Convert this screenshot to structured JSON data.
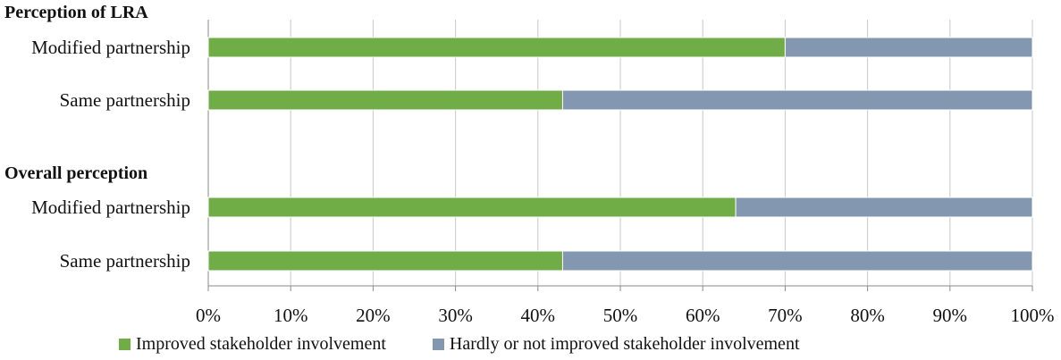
{
  "chart_data": {
    "type": "bar",
    "orientation": "horizontal-stacked-100",
    "groups": [
      {
        "heading": "Perception of LRA",
        "categories": [
          "Modified partnership",
          "Same partnership"
        ]
      },
      {
        "heading": "Overall perception",
        "categories": [
          "Modified partnership",
          "Same partnership"
        ]
      }
    ],
    "series": [
      {
        "name": "Improved stakeholder involvement",
        "color": "#70ad47",
        "values": [
          70,
          43,
          64,
          43
        ]
      },
      {
        "name": "Hardly or not improved stakeholder involvement",
        "color": "#8497b0",
        "values": [
          30,
          57,
          36,
          57
        ]
      }
    ],
    "xlim": [
      0,
      100
    ],
    "xticks": [
      "0%",
      "10%",
      "20%",
      "30%",
      "40%",
      "50%",
      "60%",
      "70%",
      "80%",
      "90%",
      "100%"
    ],
    "grid": true,
    "legend_position": "bottom"
  }
}
